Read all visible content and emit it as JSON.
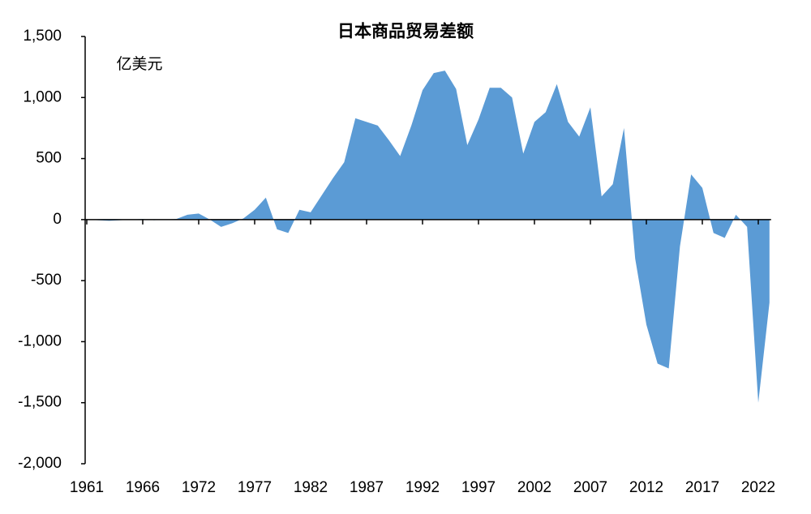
{
  "chart_data": {
    "type": "area",
    "title": "日本商品贸易差额",
    "y_axis_label": "亿美元",
    "categories": [
      "1961",
      null,
      null,
      null,
      null,
      "1966",
      null,
      null,
      null,
      null,
      "1972",
      null,
      null,
      null,
      null,
      "1977",
      null,
      null,
      null,
      null,
      "1982",
      null,
      null,
      null,
      null,
      "1987",
      null,
      null,
      null,
      null,
      "1992",
      null,
      null,
      null,
      null,
      "1997",
      null,
      null,
      null,
      null,
      "2002",
      null,
      null,
      null,
      null,
      "2007",
      null,
      null,
      null,
      null,
      "2012",
      null,
      null,
      null,
      null,
      "2017",
      null,
      null,
      null,
      null,
      "2022",
      null
    ],
    "series": [
      {
        "name": "日本商品贸易差额",
        "color": "#5b9bd5",
        "values": [
          0,
          -5,
          -10,
          -5,
          0,
          5,
          -5,
          0,
          5,
          40,
          50,
          0,
          -60,
          -30,
          10,
          80,
          180,
          -80,
          -110,
          80,
          60,
          200,
          340,
          470,
          830,
          800,
          770,
          650,
          520,
          770,
          1060,
          1200,
          1220,
          1070,
          610,
          820,
          1080,
          1080,
          1000,
          540,
          800,
          880,
          1110,
          800,
          680,
          920,
          190,
          290,
          750,
          -320,
          -860,
          -1180,
          -1220,
          -220,
          370,
          260,
          -110,
          -150,
          40,
          -60,
          -1500,
          -680
        ]
      }
    ],
    "ylim": [
      -2000,
      1500
    ],
    "yticks": [
      {
        "value": -2000,
        "label": "-2,000"
      },
      {
        "value": -1500,
        "label": "-1,500"
      },
      {
        "value": -1000,
        "label": "-1,000"
      },
      -500,
      0,
      500,
      {
        "value": 1000,
        "label": "1,000"
      },
      {
        "value": 1500,
        "label": "1,500"
      }
    ]
  }
}
